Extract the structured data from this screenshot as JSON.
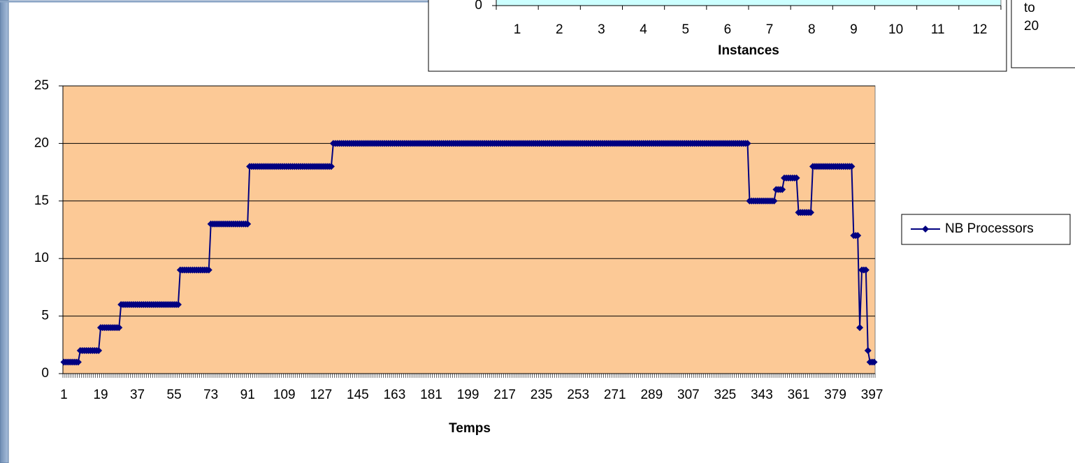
{
  "chart_data": [
    {
      "type": "line",
      "x_label": "Temps",
      "categories": [
        1,
        null,
        null,
        null,
        null,
        null,
        null,
        null,
        null,
        null,
        null,
        null,
        null,
        null,
        null,
        null,
        null,
        null,
        19,
        null,
        null,
        null,
        null,
        null,
        null,
        null,
        null,
        null,
        null,
        null,
        null,
        null,
        null,
        null,
        null,
        null,
        37,
        null,
        null,
        null,
        null,
        null,
        null,
        null,
        null,
        null,
        null,
        null,
        null,
        null,
        null,
        null,
        null,
        null,
        55,
        null,
        null,
        null,
        null,
        null,
        null,
        null,
        null,
        null,
        null,
        null,
        null,
        null,
        null,
        null,
        null,
        null,
        73,
        null,
        null,
        null,
        null,
        null,
        null,
        null,
        null,
        null,
        null,
        null,
        null,
        null,
        null,
        null,
        null,
        null,
        91,
        null,
        null,
        null,
        null,
        null,
        null,
        null,
        null,
        null,
        null,
        null,
        null,
        null,
        null,
        null,
        null,
        null,
        109,
        null,
        null,
        null,
        null,
        null,
        null,
        null,
        null,
        null,
        null,
        null,
        null,
        null,
        null,
        null,
        null,
        null,
        127,
        null,
        null,
        null,
        null,
        null,
        null,
        null,
        null,
        null,
        null,
        null,
        null,
        null,
        null,
        null,
        null,
        null,
        145,
        null,
        null,
        null,
        null,
        null,
        null,
        null,
        null,
        null,
        null,
        null,
        null,
        null,
        null,
        null,
        null,
        null,
        163,
        null,
        null,
        null,
        null,
        null,
        null,
        null,
        null,
        null,
        null,
        null,
        null,
        null,
        null,
        null,
        null,
        null,
        181,
        null,
        null,
        null,
        null,
        null,
        null,
        null,
        null,
        null,
        null,
        null,
        null,
        null,
        null,
        null,
        null,
        null,
        199,
        null,
        null,
        null,
        null,
        null,
        null,
        null,
        null,
        null,
        null,
        null,
        null,
        null,
        null,
        null,
        null,
        null,
        217,
        null,
        null,
        null,
        null,
        null,
        null,
        null,
        null,
        null,
        null,
        null,
        null,
        null,
        null,
        null,
        null,
        null,
        235,
        null,
        null,
        null,
        null,
        null,
        null,
        null,
        null,
        null,
        null,
        null,
        null,
        null,
        null,
        null,
        null,
        null,
        253,
        null,
        null,
        null,
        null,
        null,
        null,
        null,
        null,
        null,
        null,
        null,
        null,
        null,
        null,
        null,
        null,
        null,
        271,
        null,
        null,
        null,
        null,
        null,
        null,
        null,
        null,
        null,
        null,
        null,
        null,
        null,
        null,
        null,
        null,
        null,
        289,
        null,
        null,
        null,
        null,
        null,
        null,
        null,
        null,
        null,
        null,
        null,
        null,
        null,
        null,
        null,
        null,
        null,
        307,
        null,
        null,
        null,
        null,
        null,
        null,
        null,
        null,
        null,
        null,
        null,
        null,
        null,
        null,
        null,
        null,
        null,
        325,
        null,
        null,
        null,
        null,
        null,
        null,
        null,
        null,
        null,
        null,
        null,
        null,
        null,
        null,
        null,
        null,
        null,
        343,
        null,
        null,
        null,
        null,
        null,
        null,
        null,
        null,
        null,
        null,
        null,
        null,
        null,
        null,
        null,
        null,
        null,
        361,
        null,
        null,
        null,
        null,
        null,
        null,
        null,
        null,
        null,
        null,
        null,
        null,
        null,
        null,
        null,
        null,
        null,
        379,
        null,
        null,
        null,
        null,
        null,
        null,
        null,
        null,
        null,
        null,
        null,
        null,
        null,
        null,
        null,
        null,
        null,
        397,
        null
      ],
      "series": [
        {
          "name": "NB Processors",
          "color": "#000080",
          "values": [
            1,
            1,
            1,
            1,
            1,
            1,
            1,
            1,
            2,
            2,
            2,
            2,
            2,
            2,
            2,
            2,
            2,
            2,
            4,
            4,
            4,
            4,
            4,
            4,
            4,
            4,
            4,
            4,
            6,
            6,
            6,
            6,
            6,
            6,
            6,
            6,
            6,
            6,
            6,
            6,
            6,
            6,
            6,
            6,
            6,
            6,
            6,
            6,
            6,
            6,
            6,
            6,
            6,
            6,
            6,
            6,
            6,
            9,
            9,
            9,
            9,
            9,
            9,
            9,
            9,
            9,
            9,
            9,
            9,
            9,
            9,
            9,
            13,
            13,
            13,
            13,
            13,
            13,
            13,
            13,
            13,
            13,
            13,
            13,
            13,
            13,
            13,
            13,
            13,
            13,
            13,
            18,
            18,
            18,
            18,
            18,
            18,
            18,
            18,
            18,
            18,
            18,
            18,
            18,
            18,
            18,
            18,
            18,
            18,
            18,
            18,
            18,
            18,
            18,
            18,
            18,
            18,
            18,
            18,
            18,
            18,
            18,
            18,
            18,
            18,
            18,
            18,
            18,
            18,
            18,
            18,
            18,
            20,
            20,
            20,
            20,
            20,
            20,
            20,
            20,
            20,
            20,
            20,
            20,
            20,
            20,
            20,
            20,
            20,
            20,
            20,
            20,
            20,
            20,
            20,
            20,
            20,
            20,
            20,
            20,
            20,
            20,
            20,
            20,
            20,
            20,
            20,
            20,
            20,
            20,
            20,
            20,
            20,
            20,
            20,
            20,
            20,
            20,
            20,
            20,
            20,
            20,
            20,
            20,
            20,
            20,
            20,
            20,
            20,
            20,
            20,
            20,
            20,
            20,
            20,
            20,
            20,
            20,
            20,
            20,
            20,
            20,
            20,
            20,
            20,
            20,
            20,
            20,
            20,
            20,
            20,
            20,
            20,
            20,
            20,
            20,
            20,
            20,
            20,
            20,
            20,
            20,
            20,
            20,
            20,
            20,
            20,
            20,
            20,
            20,
            20,
            20,
            20,
            20,
            20,
            20,
            20,
            20,
            20,
            20,
            20,
            20,
            20,
            20,
            20,
            20,
            20,
            20,
            20,
            20,
            20,
            20,
            20,
            20,
            20,
            20,
            20,
            20,
            20,
            20,
            20,
            20,
            20,
            20,
            20,
            20,
            20,
            20,
            20,
            20,
            20,
            20,
            20,
            20,
            20,
            20,
            20,
            20,
            20,
            20,
            20,
            20,
            20,
            20,
            20,
            20,
            20,
            20,
            20,
            20,
            20,
            20,
            20,
            20,
            20,
            20,
            20,
            20,
            20,
            20,
            20,
            20,
            20,
            20,
            20,
            20,
            20,
            20,
            20,
            20,
            20,
            20,
            20,
            20,
            20,
            20,
            20,
            20,
            20,
            20,
            20,
            20,
            20,
            20,
            20,
            20,
            20,
            20,
            20,
            20,
            20,
            20,
            20,
            20,
            20,
            20,
            15,
            15,
            15,
            15,
            15,
            15,
            15,
            15,
            15,
            15,
            15,
            15,
            15,
            16,
            16,
            16,
            16,
            17,
            17,
            17,
            17,
            17,
            17,
            17,
            14,
            14,
            14,
            14,
            14,
            14,
            14,
            18,
            18,
            18,
            18,
            18,
            18,
            18,
            18,
            18,
            18,
            18,
            18,
            18,
            18,
            18,
            18,
            18,
            18,
            18,
            18,
            12,
            12,
            12,
            4,
            9,
            9,
            9,
            2,
            1,
            1,
            1
          ]
        }
      ],
      "ylim": [
        0,
        25
      ],
      "yticks": [
        0,
        5,
        10,
        15,
        20,
        25
      ],
      "grid": true,
      "plot_color": "#fcc996",
      "legend": "right"
    },
    {
      "type": "line",
      "x_label": "Instances",
      "categories": [
        1,
        2,
        3,
        4,
        5,
        6,
        7,
        8,
        9,
        10,
        11,
        12
      ],
      "yticks": [
        0
      ],
      "plot_color": "#ccffff",
      "legend_text": [
        "to",
        "20"
      ]
    }
  ]
}
